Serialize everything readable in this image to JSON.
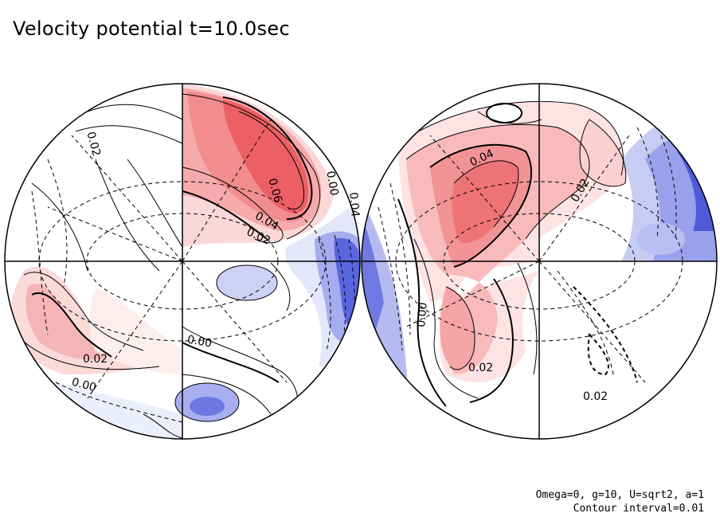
{
  "title": "Velocity potential t=10.0sec",
  "footnote": {
    "params": "Omega=0, g=10, U=sqrt2, a=1",
    "interval": "Contour interval=0.01"
  },
  "colors": {
    "positive": "#e8404a",
    "negative": "#3a48d8",
    "line": "#000000"
  },
  "hemispheres": [
    {
      "name": "left-hemisphere",
      "labels": [
        "0.02",
        "0.06",
        "0.04",
        "0.02",
        "0.00",
        "0.04",
        "0.02",
        "0.00",
        "0.00"
      ]
    },
    {
      "name": "right-hemisphere",
      "labels": [
        "0.04",
        "0.02",
        "0.00",
        "0.02",
        "0.02"
      ]
    }
  ]
}
